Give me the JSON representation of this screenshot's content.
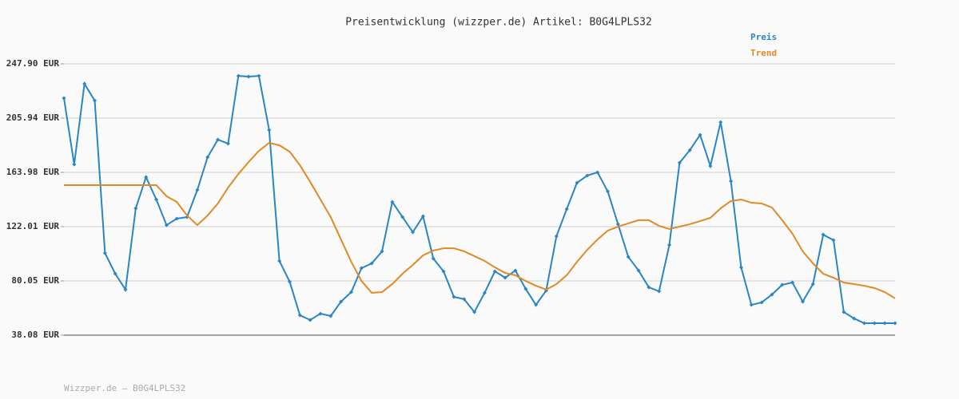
{
  "chart_data": {
    "type": "line",
    "title": "Preisentwicklung (wizzper.de) Artikel: B0G4LPLS32",
    "footer": "Wizzper.de – B0G4LPLS32",
    "categories": [
      null,
      null,
      null,
      null,
      null,
      null,
      null,
      null,
      null,
      null,
      null,
      null,
      null,
      null,
      null,
      null,
      null,
      null,
      null,
      null,
      null,
      null,
      null,
      null,
      null,
      null,
      null,
      null,
      null,
      null,
      null,
      null,
      null,
      null,
      null,
      null,
      null,
      null,
      null,
      null,
      null,
      null,
      null,
      null,
      null,
      null,
      null,
      null,
      null,
      null,
      null,
      null,
      null,
      null,
      null,
      null,
      null,
      null,
      null,
      null,
      null,
      null,
      null,
      null,
      null,
      null,
      null,
      null,
      null,
      null,
      null,
      null,
      null,
      null,
      null,
      null,
      null,
      null,
      null,
      null,
      null,
      null
    ],
    "series": [
      {
        "name": "Preis",
        "color": "#2a85c4",
        "markers": true,
        "values": [
          221.4,
          170.1,
          232.5,
          219.5,
          101.6,
          85.6,
          73.3,
          136.2,
          160.3,
          143.0,
          123.2,
          128.2,
          129.4,
          150.4,
          175.7,
          189.3,
          186.2,
          238.6,
          238.0,
          238.6,
          196.7,
          95.5,
          79.4,
          53.5,
          49.8,
          54.7,
          52.9,
          64.0,
          71.4,
          89.9,
          93.6,
          102.9,
          141.1,
          129.4,
          117.7,
          130.0,
          97.3,
          87.4,
          67.7,
          65.9,
          56.0,
          70.8,
          87.4,
          82.5,
          88.1,
          73.9,
          61.5,
          72.6,
          114.6,
          135.6,
          155.9,
          161.5,
          164.0,
          149.2,
          123.9,
          98.6,
          88.1,
          75.1,
          72.0,
          107.8,
          171.4,
          181.2,
          193.0,
          168.9,
          202.8,
          157.2,
          90.5,
          61.5,
          63.4,
          69.5,
          77.0,
          78.8,
          64.0,
          77.6,
          115.8,
          111.5,
          56.0,
          51.0,
          47.3,
          47.3,
          47.3,
          47.3
        ]
      },
      {
        "name": "Trend",
        "color": "#e08a24",
        "markers": false,
        "values": [
          154.1,
          154.1,
          154.1,
          154.1,
          154.1,
          154.1,
          154.1,
          154.1,
          154.1,
          154.1,
          145.5,
          141.1,
          130.6,
          123.2,
          130.6,
          139.9,
          152.2,
          162.7,
          172.0,
          180.6,
          186.8,
          184.9,
          180.0,
          169.5,
          156.6,
          143.0,
          129.4,
          112.1,
          94.8,
          80.0,
          70.8,
          71.4,
          77.6,
          85.6,
          92.4,
          99.8,
          103.5,
          105.3,
          105.3,
          102.9,
          99.2,
          95.5,
          90.5,
          86.2,
          84.4,
          80.0,
          76.3,
          73.3,
          77.6,
          84.4,
          94.8,
          104.1,
          112.1,
          118.9,
          122.0,
          124.5,
          127.0,
          127.0,
          122.6,
          120.2,
          122.0,
          123.9,
          126.3,
          128.8,
          136.2,
          141.8,
          143.0,
          140.5,
          139.9,
          136.8,
          127.0,
          116.5,
          102.9,
          93.6,
          85.6,
          82.5,
          78.8,
          77.6,
          76.3,
          74.5,
          71.4,
          66.5
        ]
      }
    ],
    "ylim": [
      38.08,
      247.9
    ],
    "yticks": [
      {
        "value": 38.08,
        "label": "38.08 EUR"
      },
      {
        "value": 80.05,
        "label": "80.05 EUR"
      },
      {
        "value": 122.01,
        "label": "122.01 EUR"
      },
      {
        "value": 163.98,
        "label": "163.98 EUR"
      },
      {
        "value": 205.94,
        "label": "205.94 EUR"
      },
      {
        "value": 247.9,
        "label": "247.90 EUR"
      }
    ],
    "grid": true
  }
}
